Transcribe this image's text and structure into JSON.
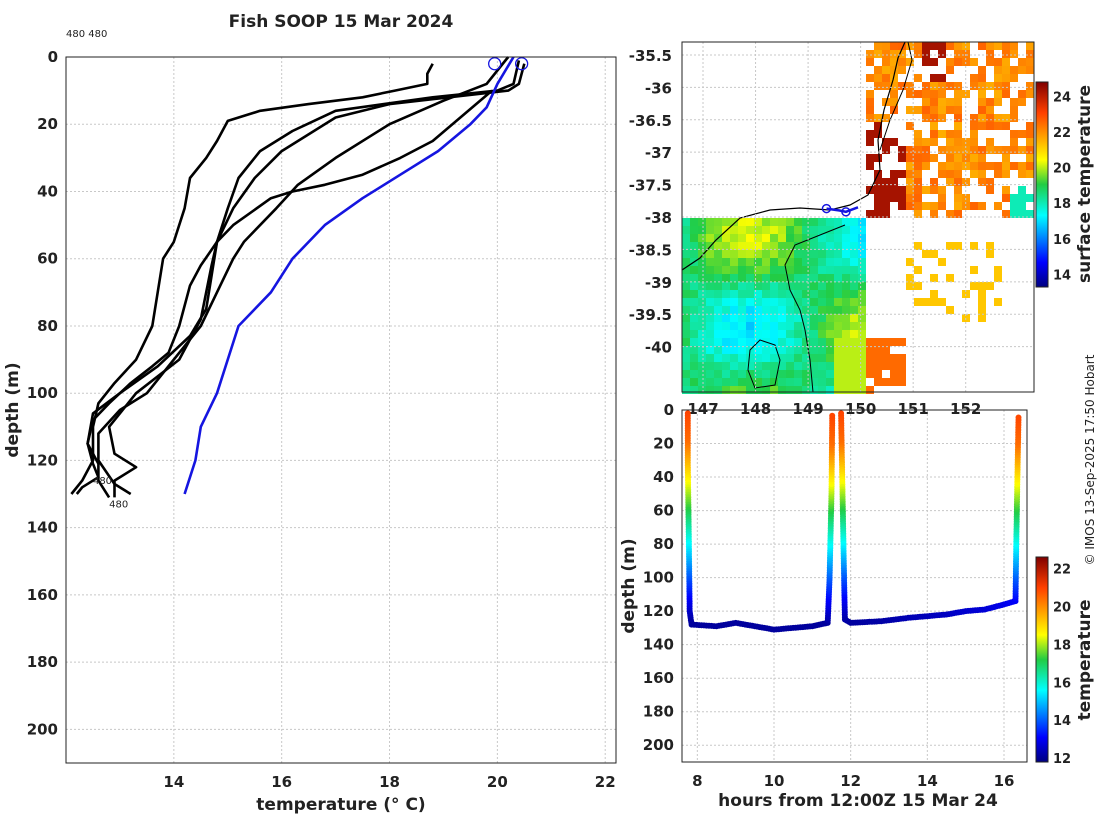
{
  "chart_data": [
    {
      "type": "line",
      "title": "Fish SOOP 15 Mar 2024",
      "xlabel": "temperature (° C)",
      "ylabel": "depth (m)",
      "xlim": [
        12.0,
        22.2
      ],
      "ylim": [
        210,
        0
      ],
      "xticks": [
        14,
        16,
        18,
        20,
        22
      ],
      "yticks": [
        0,
        20,
        40,
        60,
        80,
        100,
        120,
        140,
        160,
        180,
        200
      ],
      "annotations": [
        {
          "text": "480 480",
          "x": 12.0,
          "y": -3
        },
        {
          "text": "480",
          "x": 12.5,
          "y": 127
        },
        {
          "text": "480",
          "x": 12.8,
          "y": 134
        }
      ],
      "series": [
        {
          "name": "profile 1",
          "color": "#000000",
          "points": [
            [
              18.8,
              2
            ],
            [
              18.7,
              5
            ],
            [
              18.7,
              8
            ],
            [
              18.1,
              10
            ],
            [
              17.5,
              12
            ],
            [
              16.5,
              14
            ],
            [
              15.6,
              16
            ],
            [
              15.0,
              19
            ],
            [
              14.8,
              25
            ],
            [
              14.6,
              30
            ],
            [
              14.3,
              36
            ],
            [
              14.2,
              45
            ],
            [
              14.0,
              55
            ],
            [
              13.8,
              60
            ],
            [
              13.7,
              70
            ],
            [
              13.6,
              80
            ],
            [
              13.3,
              90
            ],
            [
              12.9,
              97
            ],
            [
              12.6,
              103
            ],
            [
              12.5,
              110
            ],
            [
              12.5,
              120
            ],
            [
              12.3,
              126
            ],
            [
              12.1,
              130
            ]
          ]
        },
        {
          "name": "profile 2",
          "color": "#000000",
          "points": [
            [
              20.4,
              1
            ],
            [
              20.3,
              8
            ],
            [
              20.0,
              10
            ],
            [
              18.8,
              12
            ],
            [
              17.0,
              16
            ],
            [
              16.2,
              22
            ],
            [
              15.6,
              28
            ],
            [
              15.2,
              36
            ],
            [
              15.0,
              45
            ],
            [
              14.8,
              55
            ],
            [
              14.7,
              65
            ],
            [
              14.6,
              75
            ],
            [
              14.3,
              83
            ],
            [
              13.7,
              92
            ],
            [
              13.0,
              100
            ],
            [
              12.5,
              106
            ],
            [
              12.4,
              115
            ],
            [
              12.5,
              121
            ],
            [
              12.6,
              125
            ],
            [
              12.3,
              128
            ],
            [
              12.2,
              130
            ]
          ]
        },
        {
          "name": "profile 3",
          "color": "#000000",
          "points": [
            [
              20.5,
              2
            ],
            [
              20.4,
              8
            ],
            [
              20.2,
              10
            ],
            [
              18.0,
              14
            ],
            [
              17.0,
              18
            ],
            [
              16.0,
              28
            ],
            [
              15.5,
              36
            ],
            [
              15.1,
              45
            ],
            [
              14.8,
              55
            ],
            [
              14.7,
              62
            ],
            [
              14.6,
              70
            ],
            [
              14.5,
              78
            ],
            [
              14.1,
              90
            ],
            [
              13.3,
              100
            ],
            [
              12.8,
              110
            ],
            [
              12.9,
              118
            ],
            [
              13.3,
              122
            ],
            [
              12.9,
              126
            ],
            [
              12.9,
              131
            ]
          ]
        },
        {
          "name": "profile 4",
          "color": "#000000",
          "points": [
            [
              20.2,
              0
            ],
            [
              19.8,
              8
            ],
            [
              19.0,
              13
            ],
            [
              18.0,
              20
            ],
            [
              17.0,
              30
            ],
            [
              16.3,
              38
            ],
            [
              15.9,
              45
            ],
            [
              15.3,
              55
            ],
            [
              15.1,
              60
            ],
            [
              14.8,
              70
            ],
            [
              14.5,
              80
            ],
            [
              14.0,
              90
            ],
            [
              13.5,
              100
            ],
            [
              13.0,
              105
            ],
            [
              12.6,
              112
            ],
            [
              12.6,
              120
            ],
            [
              12.9,
              127
            ],
            [
              13.2,
              130
            ]
          ]
        },
        {
          "name": "profile 5",
          "color": "#000000",
          "points": [
            [
              19.9,
              10
            ],
            [
              18.8,
              25
            ],
            [
              18.2,
              30
            ],
            [
              17.5,
              35
            ],
            [
              16.8,
              38
            ],
            [
              16.2,
              40
            ],
            [
              15.8,
              42
            ],
            [
              15.1,
              50
            ],
            [
              14.8,
              55
            ],
            [
              14.5,
              62
            ],
            [
              14.3,
              68
            ],
            [
              14.1,
              80
            ],
            [
              13.9,
              88
            ],
            [
              13.6,
              92
            ],
            [
              13.2,
              97
            ],
            [
              12.8,
              103
            ],
            [
              12.5,
              108
            ],
            [
              12.4,
              115
            ],
            [
              12.6,
              121
            ],
            [
              12.6,
              126
            ],
            [
              12.8,
              131
            ]
          ]
        },
        {
          "name": "profile 6 (blue)",
          "color": "#1515e0",
          "points": [
            [
              20.3,
              0
            ],
            [
              20.0,
              8
            ],
            [
              19.8,
              15
            ],
            [
              19.5,
              20
            ],
            [
              18.9,
              28
            ],
            [
              18.2,
              35
            ],
            [
              17.5,
              42
            ],
            [
              16.8,
              50
            ],
            [
              16.2,
              60
            ],
            [
              15.8,
              70
            ],
            [
              15.2,
              80
            ],
            [
              14.8,
              100
            ],
            [
              14.5,
              110
            ],
            [
              14.4,
              120
            ],
            [
              14.2,
              130
            ]
          ]
        }
      ]
    },
    {
      "type": "heatmap",
      "subject": "surface temperature map",
      "colorbar_label": "surface temperature",
      "colorbar_ticks": [
        14,
        16,
        18,
        20,
        22,
        24
      ],
      "colorbar_range": [
        13.3,
        24.8
      ],
      "xlim": [
        146.6,
        153.3
      ],
      "ylim": [
        -40.7,
        -35.3
      ],
      "xticks": [
        147,
        148,
        149,
        150,
        151,
        152
      ],
      "yticks": [
        -35.5,
        -36,
        -36.5,
        -37,
        -37.5,
        -38,
        -38.5,
        -39,
        -39.5,
        -40
      ],
      "ytick_labels": [
        "-35.5",
        "-36",
        "-36.5",
        "-37",
        "-37.5",
        "-38",
        "-38.5",
        "-39",
        "-39.5",
        "-40"
      ],
      "track": [
        [
          149.35,
          -37.87
        ],
        [
          149.6,
          -37.9
        ],
        [
          149.72,
          -37.92
        ],
        [
          149.95,
          -37.85
        ]
      ]
    },
    {
      "type": "scatter",
      "xlabel": "hours from 12:00Z 15 Mar 24",
      "ylabel": "depth (m)",
      "colorbar_label": "temperature",
      "colorbar_ticks": [
        12,
        14,
        16,
        18,
        20,
        22
      ],
      "colorbar_range": [
        11.8,
        22.6
      ],
      "xlim": [
        7.6,
        16.6
      ],
      "ylim": [
        210,
        0
      ],
      "xticks": [
        8,
        10,
        12,
        14,
        16
      ],
      "yticks": [
        0,
        20,
        40,
        60,
        80,
        100,
        120,
        140,
        160,
        180,
        200
      ],
      "series": [
        {
          "name": "dive 1",
          "points": [
            [
              7.75,
              2
            ],
            [
              7.75,
              30
            ],
            [
              7.78,
              80
            ],
            [
              7.8,
              120
            ],
            [
              7.85,
              128
            ],
            [
              8.5,
              129
            ],
            [
              9.0,
              127
            ],
            [
              9.5,
              129
            ],
            [
              10.0,
              131
            ],
            [
              10.5,
              130
            ],
            [
              11.0,
              129
            ],
            [
              11.4,
              127
            ],
            [
              11.45,
              100
            ],
            [
              11.5,
              50
            ],
            [
              11.52,
              2
            ]
          ]
        },
        {
          "name": "dive 2",
          "points": [
            [
              11.75,
              2
            ],
            [
              11.78,
              40
            ],
            [
              11.82,
              90
            ],
            [
              11.85,
              125
            ],
            [
              12.0,
              127
            ],
            [
              12.8,
              126
            ],
            [
              13.5,
              124
            ],
            [
              14.0,
              123
            ],
            [
              14.5,
              122
            ],
            [
              15.0,
              120
            ],
            [
              15.5,
              119
            ],
            [
              16.0,
              116
            ],
            [
              16.3,
              114
            ],
            [
              16.32,
              80
            ],
            [
              16.35,
              40
            ],
            [
              16.38,
              3
            ]
          ]
        }
      ]
    }
  ],
  "credit": "© IMOS 13-Sep-2025 17:50 Hobart"
}
